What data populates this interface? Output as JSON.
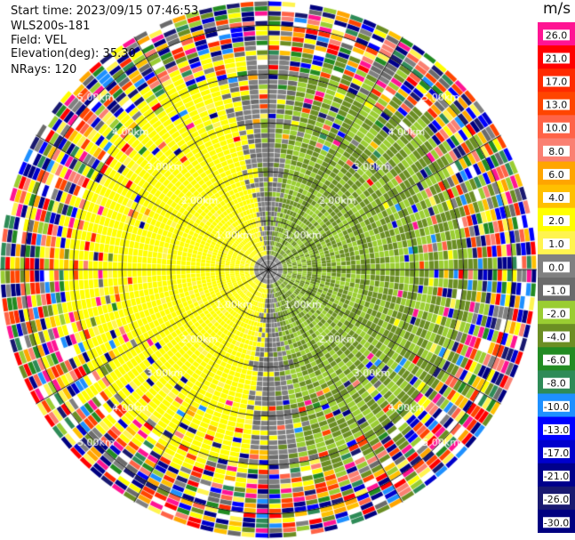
{
  "header": {
    "start_time": "Start time: 2023/09/15 07:46:53",
    "instrument": "WLS200s-181",
    "field": "Field: VEL",
    "elevation": "Elevation(deg): 35.30",
    "nrays": "NRays: 120"
  },
  "colorbar": {
    "unit": "m/s",
    "ticks": [
      "26.0",
      "21.0",
      "17.0",
      "13.0",
      "10.0",
      "8.0",
      "6.0",
      "4.0",
      "2.0",
      "1.0",
      "0.0",
      "-1.0",
      "-2.0",
      "-4.0",
      "-6.0",
      "-8.0",
      "-10.0",
      "-13.0",
      "-17.0",
      "-21.0",
      "-26.0",
      "-30.0"
    ],
    "colors": [
      "#ff1493",
      "#ff0000",
      "#ff2a00",
      "#ff4500",
      "#ff6347",
      "#fa8072",
      "#ffa500",
      "#ffc000",
      "#ffff00",
      "#fff44f",
      "#808080",
      "#6b6b6b",
      "#9acd32",
      "#6b8e23",
      "#228b22",
      "#2e8b57",
      "#1e90ff",
      "#0000ff",
      "#0000cd",
      "#00008b",
      "#191970",
      "#000080"
    ]
  },
  "chart_data": {
    "type": "heatmap",
    "projection": "polar (PPI)",
    "field": "VEL",
    "units": "m/s",
    "n_rays": 120,
    "elevation_deg": 35.3,
    "range_rings_km": [
      1.0,
      2.0,
      3.0,
      4.0,
      5.0
    ],
    "ring_labels": [
      "1.00km",
      "2.00km",
      "3.00km",
      "4.00km",
      "5.00km"
    ],
    "spokes_deg": [
      0,
      30,
      60,
      90,
      120,
      150,
      180,
      210,
      240,
      270,
      300,
      330
    ],
    "max_range_km": 5.5,
    "vmin": -30.0,
    "vmax": 26.0,
    "pattern": {
      "west_sector_velocity_mps": 2.0,
      "east_sector_velocity_mps": -4.0,
      "transition_band_velocity_mps": 0.0,
      "noise_beyond_km": 3.8
    },
    "grid": true
  }
}
